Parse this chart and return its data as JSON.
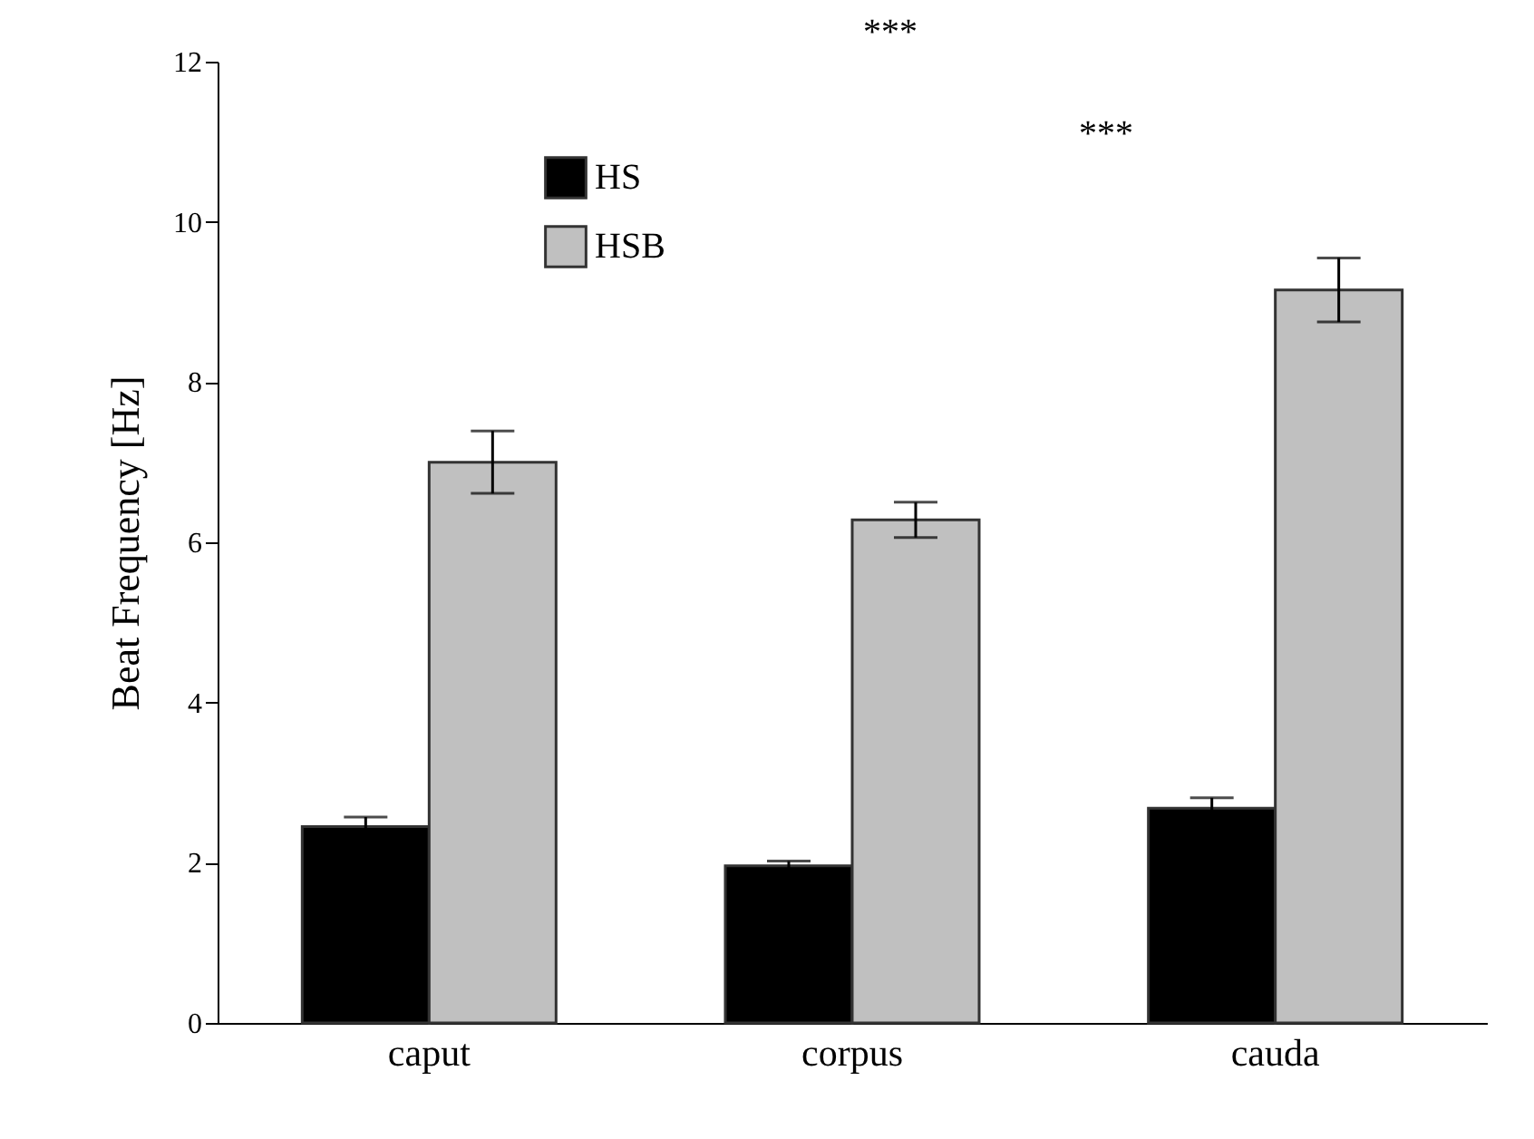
{
  "chart_data": {
    "type": "bar",
    "ylabel": "Beat Frequency [Hz]",
    "categories": [
      "caput",
      "corpus",
      "cauda"
    ],
    "series": [
      {
        "name": "HS",
        "color": "#000000",
        "values": [
          2.45,
          1.96,
          2.68
        ],
        "errors": [
          0.12,
          0.06,
          0.13
        ]
      },
      {
        "name": "HSB",
        "color": "#c0c0c0",
        "values": [
          7.0,
          6.28,
          9.15
        ],
        "errors": [
          0.39,
          0.22,
          0.4
        ]
      }
    ],
    "ylim": [
      0,
      12
    ],
    "yticks": [
      0,
      2,
      4,
      6,
      8,
      10,
      12
    ],
    "grid": false,
    "legend": "top left",
    "annotations": [
      "***",
      "***"
    ]
  }
}
